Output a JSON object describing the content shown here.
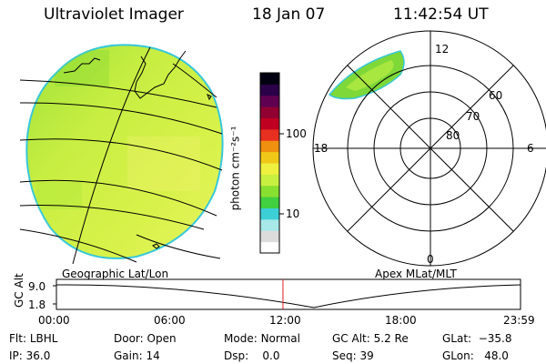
{
  "header": {
    "instrument": "Ultraviolet Imager",
    "date": "18 Jan 07",
    "time": "11:42:54 UT"
  },
  "left_panel": {
    "label": "Geographic Lat/Lon"
  },
  "right_panel": {
    "label": "Apex MLat/MLT",
    "mlt_labels": {
      "top": "12",
      "left": "18",
      "right": "6",
      "bottom": "0"
    },
    "lat_labels": [
      "60",
      "70",
      "80"
    ]
  },
  "colorbar": {
    "unit_label": "photon cm⁻²s⁻¹",
    "ticks": [
      {
        "label": "100",
        "value": 100
      },
      {
        "label": "10",
        "value": 10
      }
    ],
    "colors": [
      "#ffffff",
      "#dcdcdc",
      "#a8e8e8",
      "#3ccfd6",
      "#40d040",
      "#88e030",
      "#c8f040",
      "#f0f040",
      "#f0c818",
      "#f09010",
      "#e83020",
      "#c00020",
      "#900030",
      "#600050",
      "#2a0048",
      "#000010"
    ]
  },
  "timeline": {
    "ylabel": "GC Alt",
    "y_ticks": [
      "9.0",
      "1.8"
    ],
    "x_ticks": [
      "00:00",
      "06:00",
      "12:00",
      "18:00",
      "23:59"
    ],
    "current_marker_hour": 11.715
  },
  "info_rows": [
    [
      {
        "label": "Flt:",
        "value": "LBHL"
      },
      {
        "label": "Door:",
        "value": "Open"
      },
      {
        "label": "Mode:",
        "value": "Normal"
      },
      {
        "label": "GC Alt:",
        "value": "5.2 Re"
      },
      {
        "label": "GLat:",
        "value": "−35.8"
      }
    ],
    [
      {
        "label": "IP:",
        "value": "36.0"
      },
      {
        "label": "Gain:",
        "value": "14"
      },
      {
        "label": "Dsp:",
        "value": "0.0"
      },
      {
        "label": "Seq:",
        "value": "39"
      },
      {
        "label": "GLon:",
        "value": "48.0"
      }
    ]
  ]
}
